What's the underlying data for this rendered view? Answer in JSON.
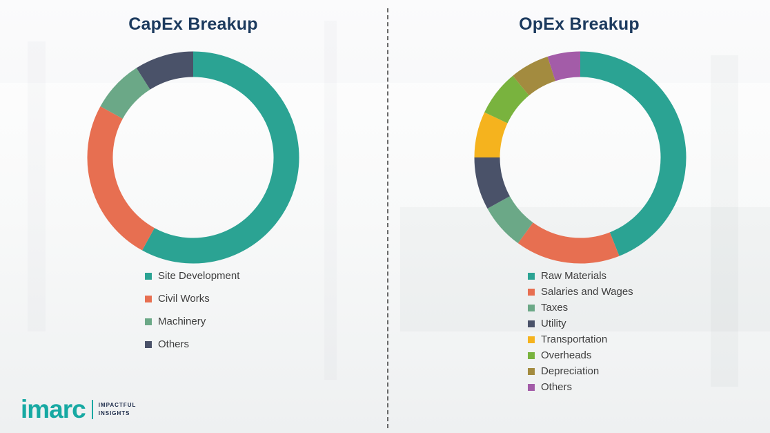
{
  "chart_data": [
    {
      "type": "pie",
      "variant": "donut",
      "title": "CapEx Breakup",
      "legend_position": "bottom",
      "start_angle_deg": 0,
      "direction": "clockwise",
      "values_unit": "percent (estimated from arc angles)",
      "segments": [
        {
          "label": "Site Development",
          "value": 58,
          "color": "#2ba393"
        },
        {
          "label": "Civil Works",
          "value": 25,
          "color": "#e76f51"
        },
        {
          "label": "Machinery",
          "value": 8,
          "color": "#6ba887"
        },
        {
          "label": "Others",
          "value": 9,
          "color": "#4a5269"
        }
      ]
    },
    {
      "type": "pie",
      "variant": "donut",
      "title": "OpEx Breakup",
      "legend_position": "bottom",
      "start_angle_deg": 0,
      "direction": "clockwise",
      "values_unit": "percent (estimated from arc angles)",
      "segments": [
        {
          "label": "Raw Materials",
          "value": 44,
          "color": "#2ba393"
        },
        {
          "label": "Salaries and Wages",
          "value": 16,
          "color": "#e76f51"
        },
        {
          "label": "Taxes",
          "value": 7,
          "color": "#6ba887"
        },
        {
          "label": "Utility",
          "value": 8,
          "color": "#4a5269"
        },
        {
          "label": "Transportation",
          "value": 7,
          "color": "#f5b31e"
        },
        {
          "label": "Overheads",
          "value": 7,
          "color": "#79b33e"
        },
        {
          "label": "Depreciation",
          "value": 6,
          "color": "#a38b3f"
        },
        {
          "label": "Others",
          "value": 5,
          "color": "#a35ca8"
        }
      ]
    }
  ],
  "style": {
    "title_color": "#1c3a5e",
    "legend_text_color": "#3f3f3f",
    "divider_style": "vertical dashed line"
  },
  "logo": {
    "brand": "imarc",
    "brand_color": "#17a9a3",
    "tagline_line1": "IMPACTFUL",
    "tagline_line2": "INSIGHTS"
  }
}
